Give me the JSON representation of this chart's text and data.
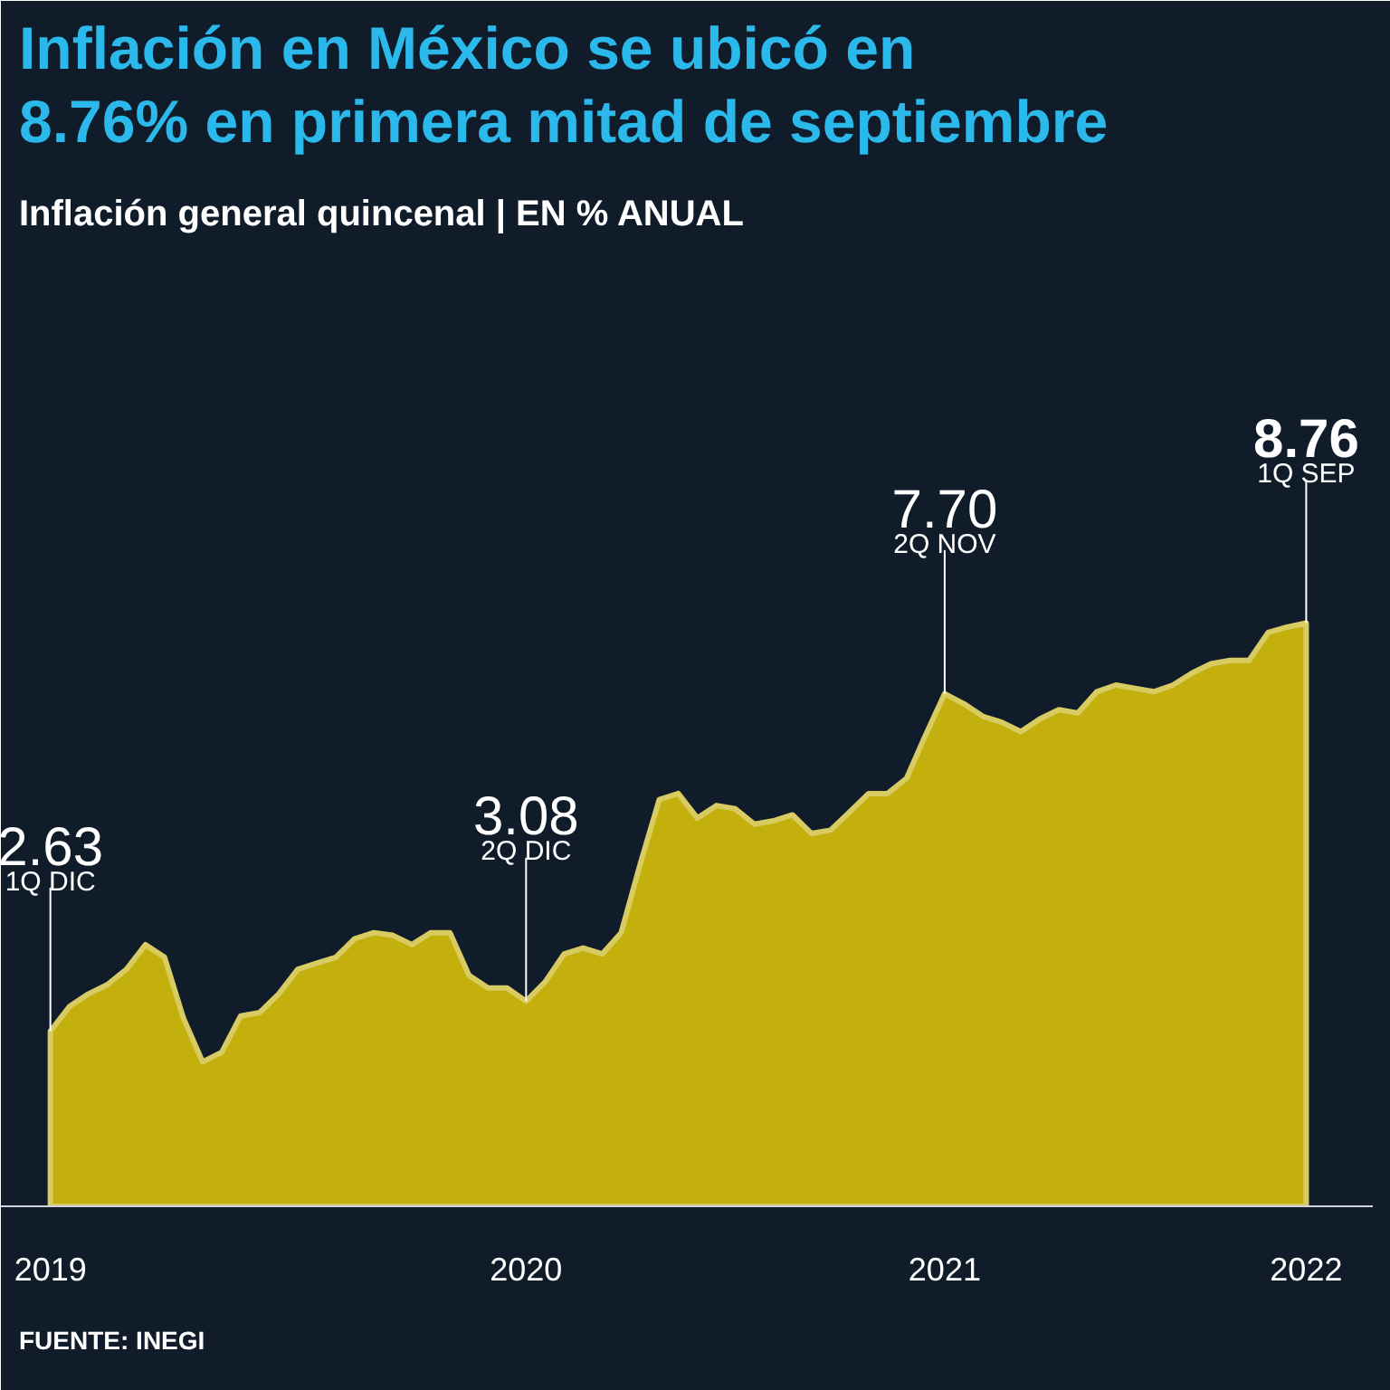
{
  "chart_data": {
    "type": "area",
    "title": "Inflación en México se ubicó en 8.76% en primera mitad de septiembre",
    "subtitle": "Inflación general quincenal | EN % ANUAL",
    "categories": [
      "2019",
      null,
      null,
      null,
      null,
      null,
      null,
      null,
      null,
      null,
      null,
      null,
      null,
      null,
      null,
      null,
      null,
      null,
      null,
      null,
      null,
      null,
      null,
      null,
      null,
      "2020",
      null,
      null,
      null,
      null,
      null,
      null,
      null,
      null,
      null,
      null,
      null,
      null,
      null,
      null,
      null,
      null,
      null,
      null,
      null,
      null,
      null,
      "2021",
      null,
      null,
      null,
      null,
      null,
      null,
      null,
      null,
      null,
      null,
      null,
      null,
      null,
      null,
      null,
      null,
      null,
      null,
      "2022"
    ],
    "series": [
      {
        "color": "#c4b00c",
        "values": [
          2.63,
          3.0,
          3.19,
          3.33,
          3.56,
          3.93,
          3.74,
          2.82,
          2.17,
          2.31,
          2.86,
          2.91,
          3.19,
          3.56,
          3.65,
          3.74,
          4.02,
          4.11,
          4.07,
          3.93,
          4.11,
          4.11,
          3.47,
          3.28,
          3.28,
          3.08,
          3.37,
          3.79,
          3.88,
          3.79,
          4.11,
          5.14,
          6.11,
          6.2,
          5.83,
          6.02,
          5.97,
          5.74,
          5.79,
          5.88,
          5.6,
          5.65,
          5.92,
          6.2,
          6.2,
          6.43,
          7.08,
          7.7,
          7.55,
          7.36,
          7.27,
          7.13,
          7.32,
          7.46,
          7.41,
          7.73,
          7.83,
          7.78,
          7.73,
          7.83,
          8.01,
          8.15,
          8.2,
          8.2,
          8.62,
          8.7,
          8.76
        ],
        "value_labels": [
          "2.63",
          null,
          null,
          null,
          null,
          null,
          null,
          null,
          null,
          null,
          null,
          null,
          null,
          null,
          null,
          null,
          null,
          null,
          null,
          null,
          null,
          null,
          null,
          null,
          null,
          "3.08",
          null,
          null,
          null,
          null,
          null,
          null,
          null,
          null,
          null,
          null,
          null,
          null,
          null,
          null,
          null,
          null,
          null,
          null,
          null,
          null,
          null,
          "7.70",
          null,
          null,
          null,
          null,
          null,
          null,
          null,
          null,
          null,
          null,
          null,
          null,
          null,
          null,
          null,
          null,
          null,
          null,
          "8.76"
        ]
      }
    ],
    "tick_labels": "x",
    "grid": false,
    "annotations": [
      {
        "text": "1Q DIC",
        "x": "2019",
        "y": 2.63
      },
      {
        "text": "2Q DIC",
        "x": "2020",
        "y": 3.08
      },
      {
        "text": "2Q NOV",
        "x": "2021",
        "y": 7.7
      },
      {
        "text": "1Q SEP",
        "x": "2022",
        "y": 8.76
      },
      "FUENTE: INEGI"
    ]
  }
}
